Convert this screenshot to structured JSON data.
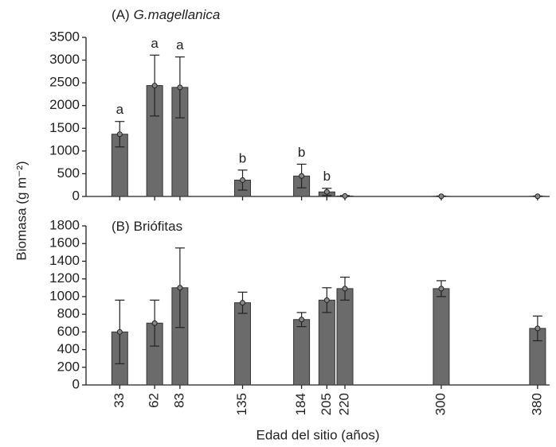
{
  "ylabel": "Biomasa (g m⁻²)",
  "chart_data": [
    {
      "type": "bar",
      "panel": "(A)",
      "title": "G.magellanica",
      "x": [
        33,
        62,
        83,
        135,
        184,
        205,
        220,
        300,
        380
      ],
      "values": [
        1370,
        2440,
        2400,
        360,
        450,
        100,
        10,
        5,
        5
      ],
      "errors": [
        280,
        670,
        670,
        220,
        260,
        80,
        10,
        5,
        5
      ],
      "letters": [
        "a",
        "a",
        "a",
        "b",
        "b",
        "b",
        null,
        null,
        null
      ],
      "color": "#6b6b6b",
      "xlim": [
        5,
        390
      ],
      "xticks": [
        33,
        62,
        83,
        135,
        184,
        205,
        220,
        300,
        380
      ],
      "ylim": [
        0,
        3500
      ],
      "yticks": [
        0,
        500,
        1000,
        1500,
        2000,
        2500,
        3000,
        3500
      ]
    },
    {
      "type": "bar",
      "panel": "(B)",
      "title": "Briófitas",
      "x": [
        33,
        62,
        83,
        135,
        184,
        205,
        220,
        300,
        380
      ],
      "values": [
        600,
        700,
        1100,
        930,
        740,
        960,
        1090,
        1090,
        640
      ],
      "errors": [
        360,
        260,
        450,
        120,
        80,
        140,
        130,
        90,
        140
      ],
      "color": "#6b6b6b",
      "xlabel": "Edad del sitio (años)",
      "xlim": [
        5,
        390
      ],
      "xticks": [
        33,
        62,
        83,
        135,
        184,
        205,
        220,
        300,
        380
      ],
      "ylim": [
        0,
        1800
      ],
      "yticks": [
        0,
        200,
        400,
        600,
        800,
        1000,
        1200,
        1400,
        1600,
        1800
      ]
    }
  ]
}
